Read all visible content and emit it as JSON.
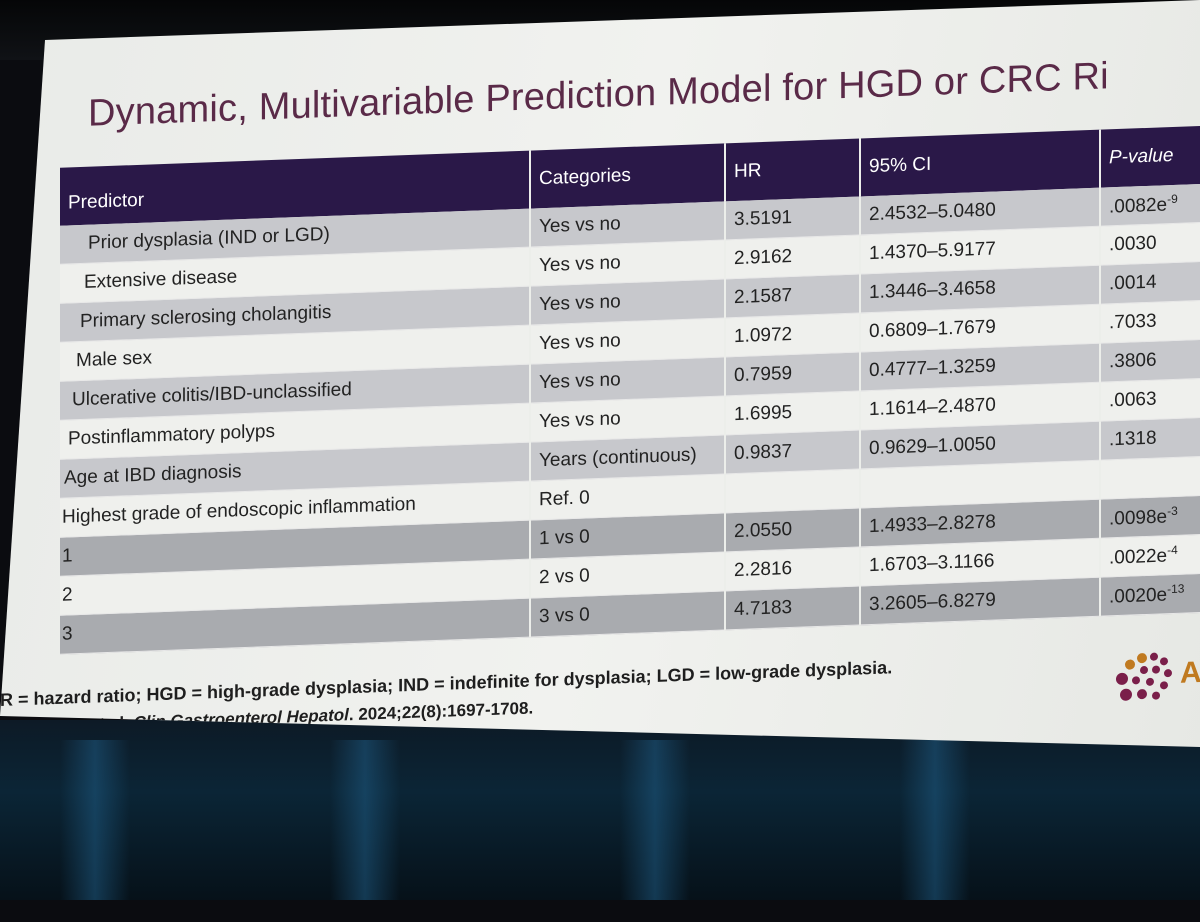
{
  "slide": {
    "title": "Dynamic, Multivariable Prediction Model for HGD or CRC Ri",
    "table": {
      "headers": [
        "Predictor",
        "Categories",
        "HR",
        "95% CI",
        "P-value"
      ],
      "rows": [
        {
          "predictor": "Prior dysplasia (IND or LGD)",
          "category": "Yes vs no",
          "hr": "3.5191",
          "ci": "2.4532–5.0480",
          "p": ".0082e",
          "p_exp": "-9"
        },
        {
          "predictor": "Extensive disease",
          "category": "Yes vs no",
          "hr": "2.9162",
          "ci": "1.4370–5.9177",
          "p": ".0030",
          "p_exp": ""
        },
        {
          "predictor": "Primary sclerosing cholangitis",
          "category": "Yes vs no",
          "hr": "2.1587",
          "ci": "1.3446–3.4658",
          "p": ".0014",
          "p_exp": ""
        },
        {
          "predictor": "Male sex",
          "category": "Yes vs no",
          "hr": "1.0972",
          "ci": "0.6809–1.7679",
          "p": ".7033",
          "p_exp": ""
        },
        {
          "predictor": "Ulcerative colitis/IBD-unclassified",
          "category": "Yes vs no",
          "hr": "0.7959",
          "ci": "0.4777–1.3259",
          "p": ".3806",
          "p_exp": ""
        },
        {
          "predictor": "Postinflammatory polyps",
          "category": "Yes vs no",
          "hr": "1.6995",
          "ci": "1.1614–2.4870",
          "p": ".0063",
          "p_exp": ""
        },
        {
          "predictor": "Age at IBD diagnosis",
          "category": "Years (continuous)",
          "hr": "0.9837",
          "ci": "0.9629–1.0050",
          "p": ".1318",
          "p_exp": ""
        },
        {
          "predictor": "Highest grade of endoscopic inflammation",
          "category": "Ref. 0",
          "hr": "",
          "ci": "",
          "p": "",
          "p_exp": ""
        },
        {
          "predictor": "1",
          "category": "1 vs 0",
          "hr": "2.0550",
          "ci": "1.4933–2.8278",
          "p": ".0098e",
          "p_exp": "-3"
        },
        {
          "predictor": "2",
          "category": "2 vs 0",
          "hr": "2.2816",
          "ci": "1.6703–3.1166",
          "p": ".0022e",
          "p_exp": "-4"
        },
        {
          "predictor": "3",
          "category": "3 vs 0",
          "hr": "4.7183",
          "ci": "3.2605–6.8279",
          "p": ".0020e",
          "p_exp": "-13"
        }
      ]
    },
    "footnote": "R = hazard ratio; HGD = high-grade dysplasia; IND = indefinite for dysplasia; LGD = low-grade dysplasia.",
    "reference": {
      "authors": "nands AM, et al. ",
      "journal": "Clin Gastroenterol Hepatol",
      "details": ". 2024;22(8):1697-1708."
    },
    "logo_letter": "A",
    "colors": {
      "title": "#5a2a48",
      "header_bg": "#2a1848",
      "logo_dots": "#7a1f4a",
      "logo_accent": "#c07a20"
    }
  }
}
